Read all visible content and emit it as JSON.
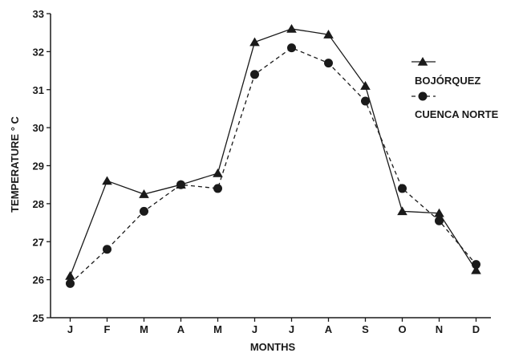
{
  "chart_data": {
    "type": "line",
    "title": "",
    "xlabel": "MONTHS",
    "ylabel": "TEMPERATURE ° C",
    "categories": [
      "J",
      "F",
      "M",
      "A",
      "M",
      "J",
      "J",
      "A",
      "S",
      "O",
      "N",
      "D"
    ],
    "ylim": [
      25,
      33
    ],
    "yticks": [
      25,
      26,
      27,
      28,
      29,
      30,
      31,
      32,
      33
    ],
    "grid": false,
    "legend_position": "right",
    "series": [
      {
        "name": "BOJÓRQUEZ",
        "marker": "triangle",
        "line_style": "solid",
        "values": [
          26.1,
          28.6,
          28.25,
          28.5,
          28.8,
          32.25,
          32.6,
          32.45,
          31.1,
          27.8,
          27.75,
          26.25
        ]
      },
      {
        "name": "CUENCA NORTE",
        "marker": "circle",
        "line_style": "dashed",
        "values": [
          25.9,
          26.8,
          27.8,
          28.5,
          28.4,
          31.4,
          32.1,
          31.7,
          30.7,
          28.4,
          27.55,
          26.4
        ]
      }
    ],
    "colors": {
      "line": "#1a1a1a",
      "marker": "#1a1a1a"
    }
  }
}
